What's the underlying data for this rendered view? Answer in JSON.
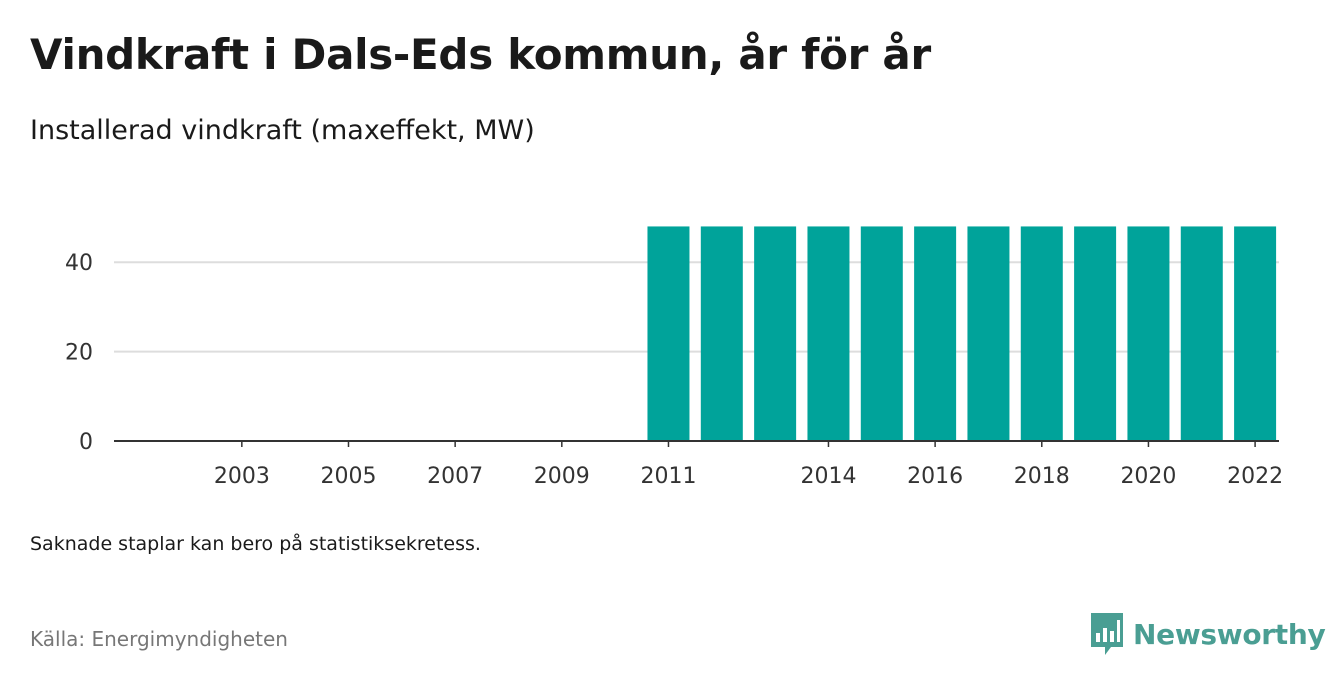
{
  "title": "Vindkraft i Dals-Eds kommun, år för år",
  "subtitle": "Installerad vindkraft (maxeffekt, MW)",
  "note": "Saknade staplar kan bero på statistiksekretess.",
  "source": "Källa: Energimyndigheten",
  "brand": {
    "name": "Newsworthy",
    "logo_icon": "newsworthy-logo-icon",
    "color": "#4a9e93"
  },
  "colors": {
    "bar": "#00a39a",
    "axis": "#333333",
    "grid": "#dddddd"
  },
  "chart_data": {
    "type": "bar",
    "categories": [
      "2002",
      "2003",
      "2004",
      "2005",
      "2006",
      "2007",
      "2008",
      "2009",
      "2010",
      "2011",
      "2012",
      "2013",
      "2014",
      "2015",
      "2016",
      "2017",
      "2018",
      "2019",
      "2020",
      "2021",
      "2022"
    ],
    "values": [
      null,
      null,
      null,
      null,
      null,
      null,
      null,
      null,
      null,
      48,
      48,
      48,
      48,
      48,
      48,
      48,
      48,
      48,
      48,
      48,
      48
    ],
    "x_tick_labels": [
      "2003",
      "2005",
      "2007",
      "2009",
      "2011",
      "2014",
      "2016",
      "2018",
      "2020",
      "2022"
    ],
    "y_ticks": [
      0,
      20,
      40
    ],
    "ylim": [
      0,
      48
    ],
    "title": "Vindkraft i Dals-Eds kommun, år för år",
    "subtitle": "Installerad vindkraft (maxeffekt, MW)",
    "xlabel": "",
    "ylabel": "",
    "grid": true,
    "legend": "none"
  }
}
